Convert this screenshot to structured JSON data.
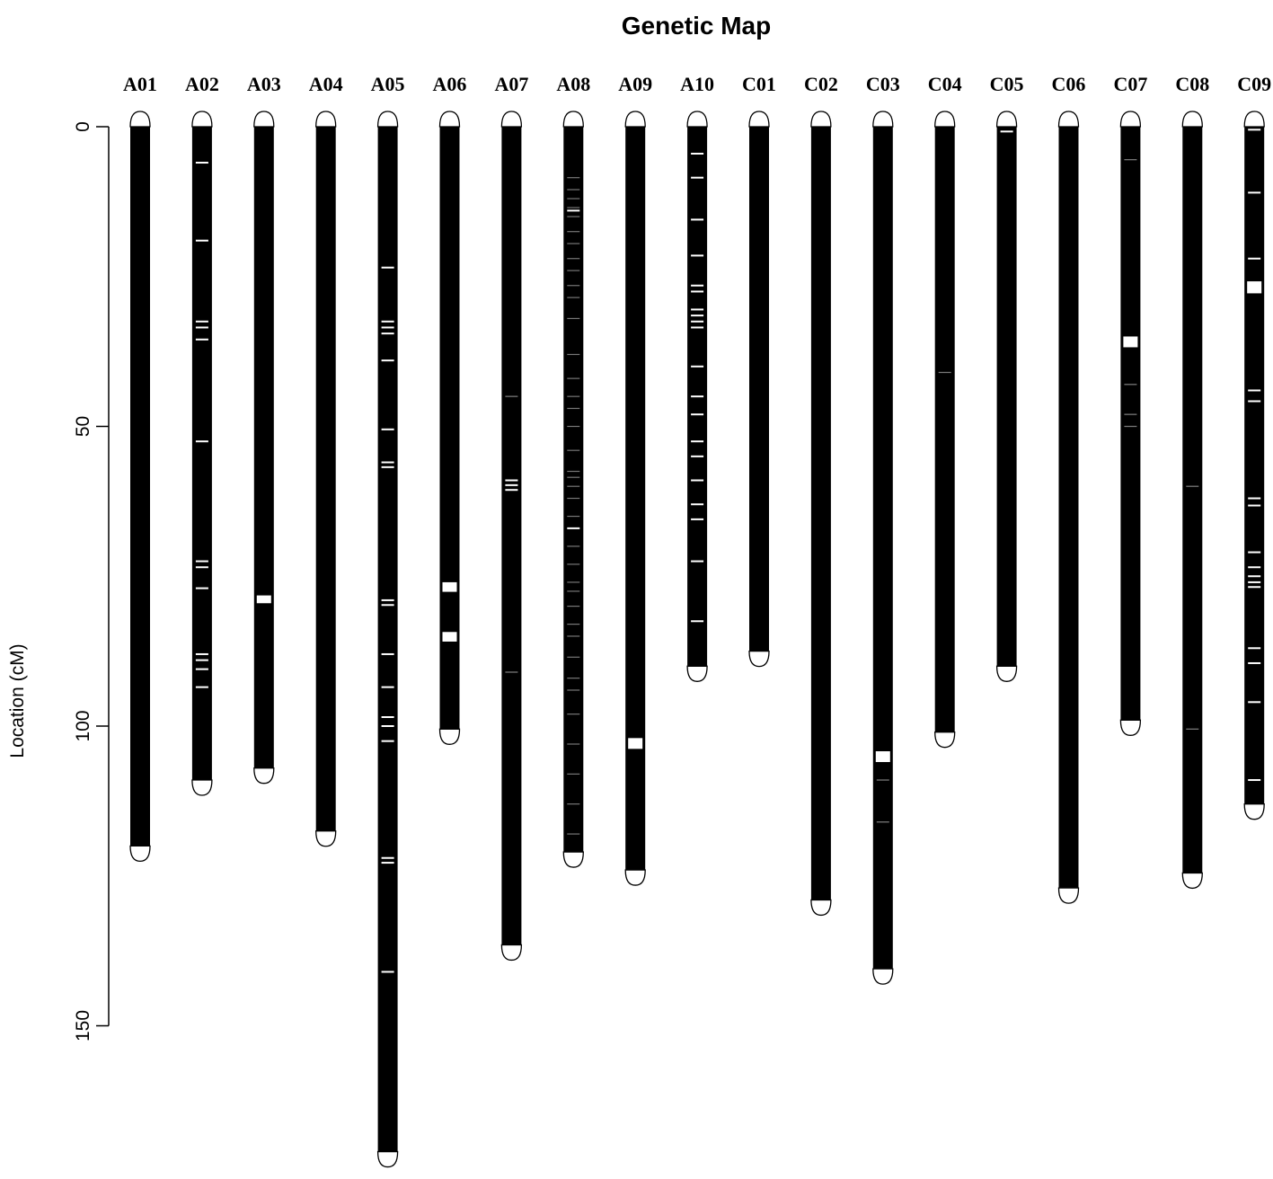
{
  "chart_data": {
    "type": "genetic_map",
    "title": "Genetic Map",
    "ylabel": "Location (cM)",
    "ylim": [
      0,
      170
    ],
    "yticks": [
      0,
      50,
      100,
      150
    ],
    "colors": {
      "chromosome": "#000000",
      "marker": "#ffffff",
      "faint_marker": "#777777",
      "cap_fill": "#ffffff"
    },
    "chromosomes": [
      {
        "name": "A01",
        "length": 120,
        "markers": [],
        "blocks": []
      },
      {
        "name": "A02",
        "length": 109,
        "markers": [
          6,
          19,
          32.5,
          33.5,
          35.5,
          52.5,
          72.5,
          73.5,
          77,
          88,
          89,
          90.5,
          93.5
        ],
        "blocks": []
      },
      {
        "name": "A03",
        "length": 107,
        "markers": [],
        "blocks": [
          [
            78.2,
            79.5
          ]
        ]
      },
      {
        "name": "A04",
        "length": 117.5,
        "markers": [],
        "blocks": []
      },
      {
        "name": "A05",
        "length": 171,
        "markers": [
          23.5,
          32.5,
          33.5,
          34.5,
          39,
          50.5,
          56,
          56.8,
          79,
          79.8,
          88,
          93.5,
          98.5,
          100,
          102.5,
          122,
          122.8,
          141
        ],
        "blocks": []
      },
      {
        "name": "A06",
        "length": 100.5,
        "markers": [],
        "blocks": [
          [
            76,
            77.6
          ],
          [
            84.3,
            85.9
          ]
        ]
      },
      {
        "name": "A07",
        "length": 136.5,
        "markers": [
          59,
          59.8,
          60.6
        ],
        "faint": [
          45,
          91
        ],
        "blocks": []
      },
      {
        "name": "A08",
        "length": 121,
        "markers": [
          8.5,
          10.5,
          12,
          13.5,
          15,
          17.5,
          19.5,
          22,
          24,
          26.5,
          28.5,
          32,
          38,
          42,
          45,
          47,
          50,
          54,
          57.5,
          58.5,
          60,
          62,
          65,
          70,
          73,
          76,
          77.5,
          80,
          83,
          85,
          88.5,
          92,
          94,
          98,
          103,
          108,
          113,
          118
        ],
        "bright": [
          14,
          67
        ],
        "blocks": []
      },
      {
        "name": "A09",
        "length": 124,
        "markers": [],
        "blocks": [
          [
            102,
            103.8
          ]
        ]
      },
      {
        "name": "A10",
        "length": 90,
        "markers": [
          4.5,
          8.5,
          15.5,
          21.5,
          26.5,
          27.5,
          30.5,
          31.5,
          32.5,
          33.5,
          40,
          45,
          48,
          52.5,
          55,
          59,
          63,
          65.5,
          72.5,
          82.5
        ],
        "blocks": []
      },
      {
        "name": "C01",
        "length": 87.5,
        "markers": [],
        "blocks": []
      },
      {
        "name": "C02",
        "length": 129,
        "markers": [],
        "blocks": []
      },
      {
        "name": "C03",
        "length": 140.5,
        "markers": [],
        "faint": [
          109,
          116
        ],
        "blocks": [
          [
            104.2,
            106
          ]
        ]
      },
      {
        "name": "C04",
        "length": 101,
        "markers": [],
        "faint": [
          41
        ],
        "blocks": []
      },
      {
        "name": "C05",
        "length": 90,
        "markers": [
          0.8
        ],
        "blocks": []
      },
      {
        "name": "C06",
        "length": 127,
        "markers": [],
        "blocks": []
      },
      {
        "name": "C07",
        "length": 99,
        "markers": [],
        "faint": [
          5.5,
          43,
          48,
          50
        ],
        "blocks": [
          [
            35,
            36.8
          ]
        ]
      },
      {
        "name": "C08",
        "length": 124.5,
        "markers": [],
        "faint": [
          60,
          100.5
        ],
        "blocks": []
      },
      {
        "name": "C09",
        "length": 113,
        "markers": [
          0.5,
          11,
          22,
          44,
          45.8,
          62,
          63.2,
          71,
          73.5,
          75,
          76,
          76.8,
          87,
          89.5,
          96,
          109
        ],
        "blocks": [
          [
            25.8,
            27.8
          ]
        ]
      }
    ]
  }
}
